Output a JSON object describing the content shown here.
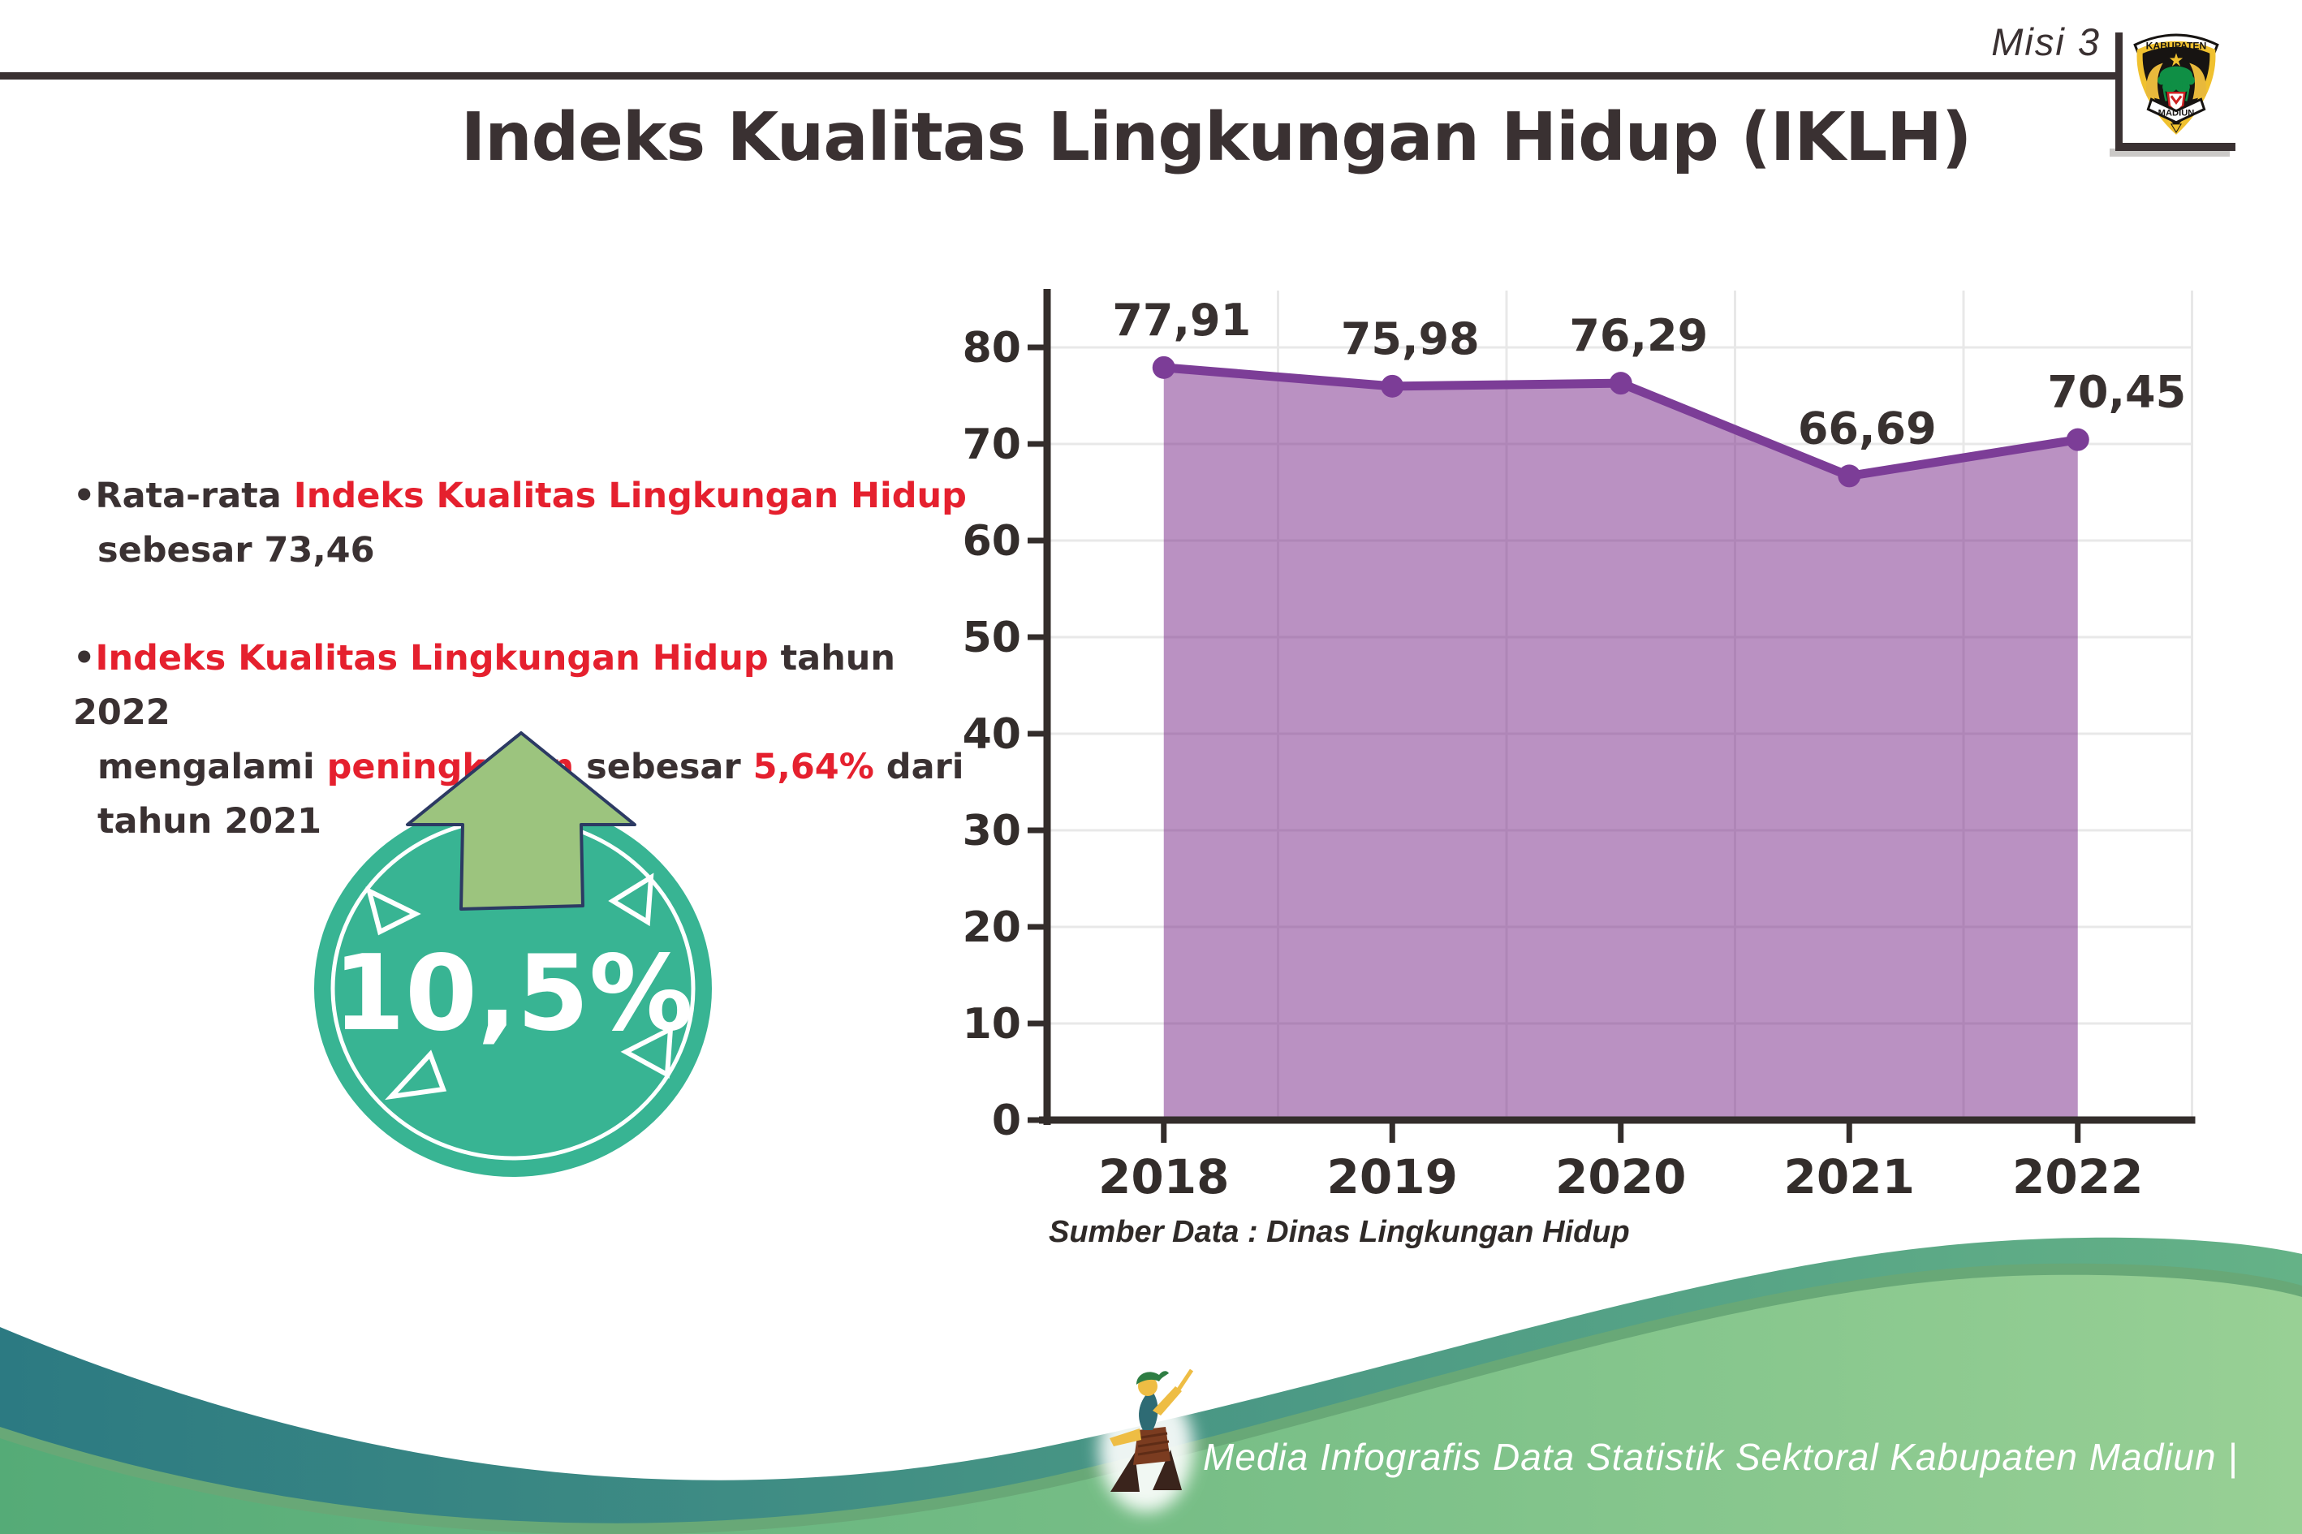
{
  "header": {
    "misi_label": "Misi 3",
    "logo": {
      "top_text": "KABUPATEN",
      "bottom_text": "MADIUN"
    }
  },
  "title": "Indeks Kualitas Lingkungan Hidup (IKLH)",
  "bullet_glyph": "•",
  "insights": {
    "bullet1": {
      "t1": "Rata-rata ",
      "h1": "Indeks Kualitas Lingkungan Hidup",
      "t2": "sebesar 73,46"
    },
    "bullet2": {
      "h1": "Indeks Kualitas Lingkungan Hidup",
      "t1": " tahun 2022",
      "t2": "mengalami ",
      "h2": "peningkatan",
      "t3": " sebesar ",
      "h3": "5,64%",
      "t4": " dari",
      "t5": "tahun 2021"
    }
  },
  "badge": {
    "value": "10,5%"
  },
  "chart_data": {
    "type": "area",
    "title": "",
    "categories": [
      "2018",
      "2019",
      "2020",
      "2021",
      "2022"
    ],
    "values": [
      77.91,
      75.98,
      76.29,
      66.69,
      70.45
    ],
    "point_labels": [
      "77,91",
      "75,98",
      "76,29",
      "66,69",
      "70,45"
    ],
    "ylim": [
      0,
      85
    ],
    "yticks": [
      0,
      10,
      20,
      30,
      40,
      50,
      60,
      70,
      80
    ],
    "grid": true,
    "legend": false,
    "fill_color": "rgba(122,44,138,0.52)",
    "line_color": "#7c3d97",
    "marker_color": "#7c3d97",
    "axis_color": "#332d2b",
    "grid_color": "#e8e8e8",
    "label_color": "#383130",
    "source": "Sumber Data : Dinas Lingkungan Hidup"
  },
  "footer": {
    "text": "Media Infografis Data Statistik Sektoral Kabupaten Madiun |"
  },
  "colors": {
    "text_dark": "#3a3132",
    "accent_red": "#e5202e",
    "badge_teal": "#38b493",
    "arrow_green": "#9cc47e",
    "wave_teal_left": "#2c7a82",
    "wave_teal_right": "#65b287",
    "wave_green_left": "#55ab77",
    "wave_green_right": "#98d095"
  }
}
